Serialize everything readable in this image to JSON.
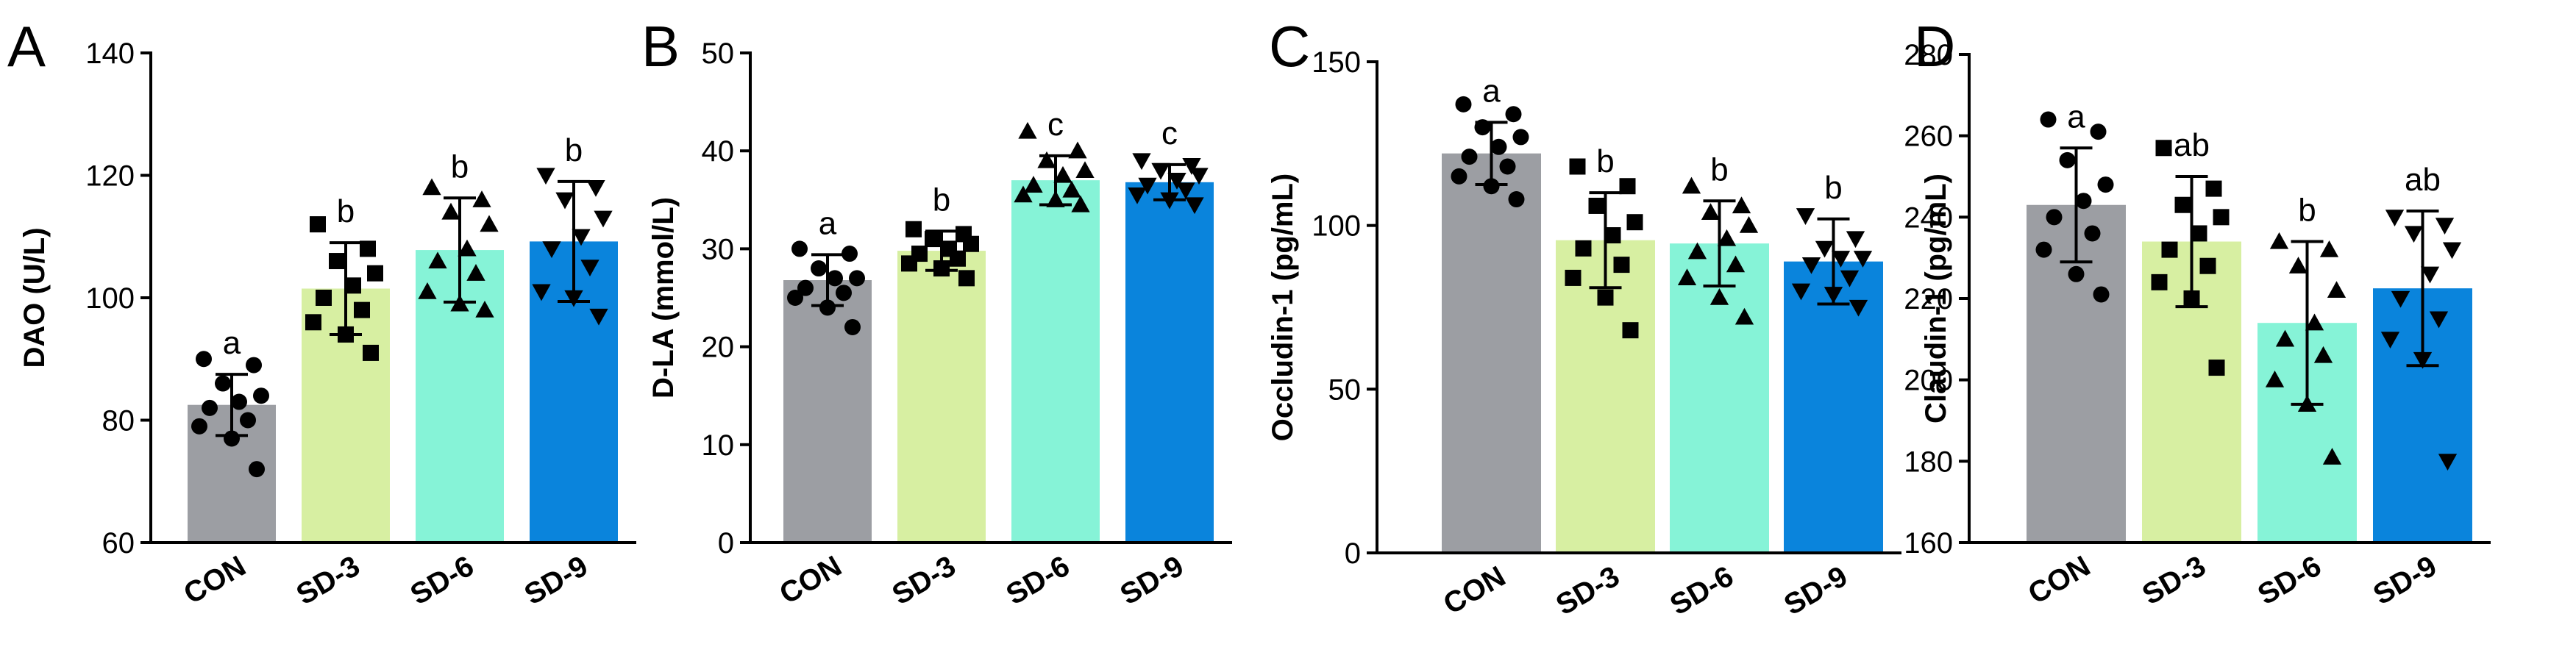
{
  "figure": {
    "categories": [
      "CON",
      "SD-3",
      "SD-6",
      "SD-9"
    ],
    "colors": {
      "CON": "#9c9ea3",
      "SD-3": "#d7efa2",
      "SD-6": "#86f3d7",
      "SD-9": "#0a84dc",
      "axis": "#000000",
      "points": "#000000"
    }
  },
  "chart_data": [
    {
      "panel": "A",
      "type": "bar",
      "ylabel": "DAO (U/L)",
      "ylim": [
        60,
        140
      ],
      "yticks": [
        60,
        80,
        100,
        120,
        140
      ],
      "categories": [
        "CON",
        "SD-3",
        "SD-6",
        "SD-9"
      ],
      "values": [
        82.5,
        101.5,
        107.8,
        109.2
      ],
      "sd": [
        5.0,
        7.5,
        8.5,
        9.8
      ],
      "letters": [
        "a",
        "b",
        "b",
        "b"
      ],
      "markers": [
        "circle",
        "square",
        "triangle-up",
        "triangle-down"
      ],
      "points": [
        [
          90,
          89,
          86,
          84,
          83,
          82,
          80,
          79,
          77,
          72
        ],
        [
          112,
          108,
          106,
          104,
          102,
          100,
          98,
          96,
          94,
          91
        ],
        [
          118,
          116,
          114,
          112,
          108,
          106,
          104,
          101,
          99,
          98
        ],
        [
          120,
          118,
          116,
          113,
          110,
          108,
          105,
          101,
          100,
          97
        ]
      ]
    },
    {
      "panel": "B",
      "type": "bar",
      "ylabel": "D-LA (mmol/L)",
      "ylim": [
        0,
        50
      ],
      "yticks": [
        0,
        10,
        20,
        30,
        40,
        50
      ],
      "categories": [
        "CON",
        "SD-3",
        "SD-6",
        "SD-9"
      ],
      "values": [
        26.8,
        29.8,
        37.0,
        36.8
      ],
      "sd": [
        2.6,
        2.0,
        2.5,
        1.8
      ],
      "letters": [
        "a",
        "b",
        "c",
        "c"
      ],
      "markers": [
        "circle",
        "square",
        "triangle-up",
        "triangle-down"
      ],
      "points": [
        [
          30,
          29.5,
          28,
          27,
          27,
          26,
          25.5,
          25,
          24,
          22
        ],
        [
          32,
          31.5,
          31,
          30.5,
          30,
          29.5,
          29,
          28.5,
          28,
          27
        ],
        [
          42,
          40,
          39,
          38,
          37.5,
          36.5,
          36,
          35.5,
          35,
          34.5
        ],
        [
          39,
          38.5,
          38,
          37.5,
          37,
          36.5,
          36,
          35.5,
          35,
          34.5
        ]
      ]
    },
    {
      "panel": "C",
      "type": "bar",
      "ylabel": "Occludin-1 (pg/mL)",
      "ylim": [
        0,
        150
      ],
      "yticks": [
        0,
        50,
        100,
        150
      ],
      "categories": [
        "CON",
        "SD-3",
        "SD-6",
        "SD-9"
      ],
      "values": [
        122,
        95.5,
        94.5,
        89
      ],
      "sd": [
        9.5,
        14.5,
        13,
        13
      ],
      "letters": [
        "a",
        "b",
        "b",
        "b"
      ],
      "markers": [
        "circle",
        "square",
        "triangle-up",
        "triangle-down"
      ],
      "points": [
        [
          137,
          134,
          130,
          127,
          124,
          121,
          118,
          115,
          112,
          108
        ],
        [
          118,
          112,
          106,
          101,
          97,
          93,
          88,
          84,
          78,
          68
        ],
        [
          112,
          106,
          104,
          100,
          96,
          92,
          88,
          84,
          78,
          72
        ],
        [
          103,
          96,
          93,
          90,
          90,
          88,
          84,
          80,
          79,
          75
        ]
      ]
    },
    {
      "panel": "D",
      "type": "bar",
      "ylabel": "Claudin-1 (pg/mL)",
      "ylim": [
        160,
        280
      ],
      "yticks": [
        160,
        180,
        200,
        220,
        240,
        260,
        280
      ],
      "categories": [
        "CON",
        "SD-3",
        "SD-6",
        "SD-9"
      ],
      "values": [
        243,
        234,
        214,
        222.5
      ],
      "sd": [
        14,
        16,
        20,
        19
      ],
      "letters": [
        "a",
        "ab",
        "b",
        "ab"
      ],
      "markers": [
        "circle",
        "square",
        "triangle-up",
        "triangle-down"
      ],
      "points": [
        [
          264,
          261,
          254,
          248,
          244,
          240,
          236,
          232,
          226,
          221
        ],
        [
          257,
          247,
          243,
          240,
          236,
          232,
          228,
          224,
          220,
          203
        ],
        [
          234,
          232,
          228,
          222,
          214,
          210,
          206,
          200,
          194,
          181
        ],
        [
          240,
          238,
          236,
          232,
          226,
          220,
          215,
          210,
          205,
          180
        ]
      ]
    }
  ]
}
